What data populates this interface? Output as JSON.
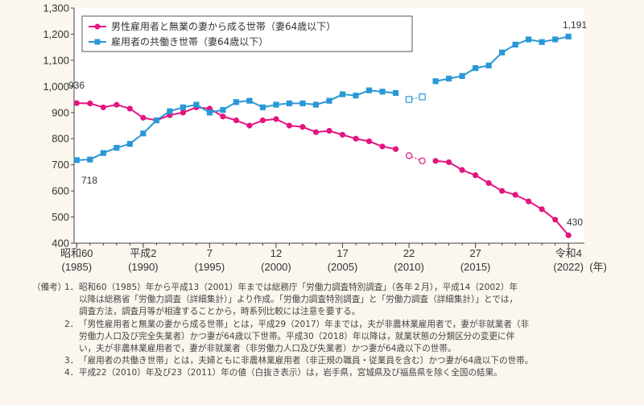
{
  "chart_data": {
    "type": "line",
    "x": [
      1985,
      1986,
      1987,
      1988,
      1989,
      1990,
      1991,
      1992,
      1993,
      1994,
      1995,
      1996,
      1997,
      1998,
      1999,
      2000,
      2001,
      2002,
      2003,
      2004,
      2005,
      2006,
      2007,
      2008,
      2009,
      2010,
      2011,
      2012,
      2013,
      2014,
      2015,
      2016,
      2017,
      2018,
      2019,
      2020,
      2021,
      2022
    ],
    "xticks": [
      {
        "year": 1985,
        "era": "昭和60",
        "west": "(1985)"
      },
      {
        "year": 1990,
        "era": "平成2",
        "west": "(1990)"
      },
      {
        "year": 1995,
        "era": "7",
        "west": "(1995)"
      },
      {
        "year": 2000,
        "era": "12",
        "west": "(2000)"
      },
      {
        "year": 2005,
        "era": "17",
        "west": "(2005)"
      },
      {
        "year": 2010,
        "era": "22",
        "west": "(2010)"
      },
      {
        "year": 2015,
        "era": "27",
        "west": "(2015)"
      },
      {
        "year": 2022,
        "era": "令和4",
        "west": "(2022)"
      }
    ],
    "xunit": "(年)",
    "ylim": [
      400,
      1300
    ],
    "yticks": [
      "400",
      "500",
      "600",
      "700",
      "800",
      "900",
      "1,000",
      "1,100",
      "1,200",
      "1,300"
    ],
    "hollow_years": [
      2010,
      2011
    ],
    "gap_after": 2011,
    "series": [
      {
        "name": "男性雇用者と無業の妻から成る世帯（妻64歳以下）",
        "color": "#e4157f",
        "marker": "circle",
        "values": [
          936,
          935,
          920,
          930,
          915,
          880,
          870,
          890,
          900,
          920,
          915,
          885,
          870,
          850,
          870,
          875,
          850,
          845,
          825,
          830,
          815,
          800,
          790,
          770,
          760,
          735,
          715,
          715,
          710,
          680,
          660,
          630,
          600,
          585,
          560,
          530,
          490,
          430
        ]
      },
      {
        "name": "雇用者の共働き世帯（妻64歳以下）",
        "color": "#2a98d6",
        "marker": "square",
        "values": [
          718,
          720,
          745,
          765,
          780,
          820,
          870,
          905,
          920,
          930,
          900,
          910,
          940,
          945,
          920,
          930,
          935,
          935,
          930,
          945,
          970,
          965,
          985,
          980,
          975,
          950,
          960,
          1020,
          1030,
          1040,
          1070,
          1080,
          1130,
          1160,
          1180,
          1170,
          1180,
          1191
        ]
      }
    ],
    "annotations": {
      "women_first": "936",
      "women_last": "430",
      "couples_first": "718",
      "couples_last": "1,191"
    }
  },
  "notes": {
    "head": "（備考）",
    "items": [
      {
        "num": "1．",
        "lines": [
          "昭和60（1985）年から平成13（2001）年までは総務庁「労働力調査特別調査」（各年２月），平成14（2002）年",
          "以降は総務省「労働力調査（詳細集計）」より作成。「労働力調査特別調査」と「労働力調査（詳細集計）」とでは，",
          "調査方法，調査月等が相違することから，時系列比較には注意を要する。"
        ]
      },
      {
        "num": "2．",
        "lines": [
          "「男性雇用者と無業の妻から成る世帯」とは，平成29（2017）年までは，夫が非農林業雇用者で，妻が非就業者（非",
          "労働力人口及び完全失業者）かつ妻が64歳以下世帯。平成30（2018）年以降は，就業状態の分類区分の変更に伴",
          "い，夫が非農林業雇用者で，妻が非就業者（非労働力人口及び失業者）かつ妻が64歳以下の世帯。"
        ]
      },
      {
        "num": "3．",
        "lines": [
          "「雇用者の共働き世帯」とは，夫婦ともに非農林業雇用者（非正規の職員・従業員を含む）かつ妻が64歳以下の世帯。"
        ]
      },
      {
        "num": "4．",
        "lines": [
          "平成22（2010）年及び23（2011）年の値（白抜き表示）は，岩手県，宮城県及び福島県を除く全国の結果。"
        ]
      }
    ]
  }
}
